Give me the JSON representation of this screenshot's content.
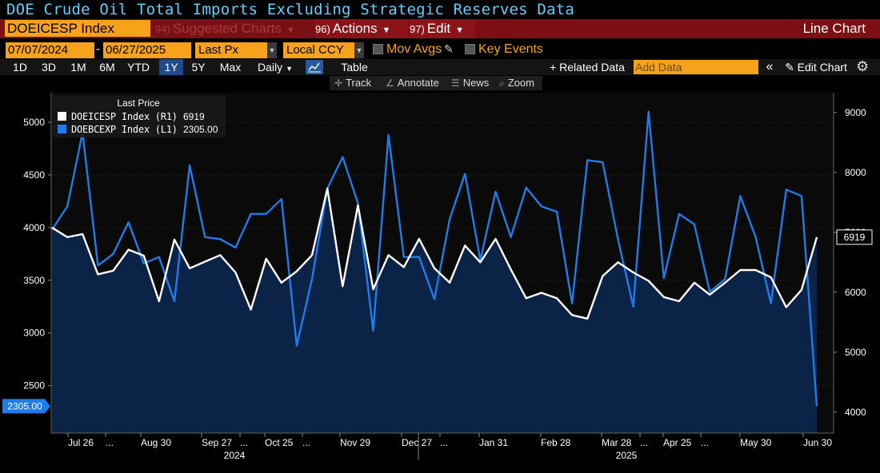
{
  "header": {
    "title": "DOE Crude Oil Total Imports Excluding Strategic Reserves Data",
    "ticker": "DOEICESP Index",
    "menu_suggested": {
      "num": "94)",
      "label": "Suggested Charts"
    },
    "menu_actions": {
      "num": "96)",
      "label": "Actions"
    },
    "menu_edit": {
      "num": "97)",
      "label": "Edit"
    },
    "chart_type": "Line Chart"
  },
  "options": {
    "start_date": "07/07/2024",
    "date_sep": "-",
    "end_date": "06/27/2025",
    "price_field": "Last Px",
    "currency": "Local CCY",
    "mov_avgs_label": "Mov Avgs",
    "key_events_label": "Key Events"
  },
  "ranges": {
    "items": [
      "1D",
      "3D",
      "1M",
      "6M",
      "YTD",
      "1Y",
      "5Y",
      "Max"
    ],
    "active": "1Y",
    "frequency": "Daily",
    "table_label": "Table",
    "related_label": "+ Related Data",
    "add_data_placeholder": "Add Data",
    "collapse_label": "«",
    "edit_chart_label": "✎ Edit Chart"
  },
  "tools": {
    "track": "Track",
    "annotate": "Annotate",
    "news": "News",
    "zoom": "Zoom"
  },
  "colors": {
    "background": "#000000",
    "plot_area": "#0a0a0a",
    "series_white": "#ffffff",
    "series_blue": "#1f7ce8",
    "area_fill": "#0a2347",
    "accent": "#f7a21b",
    "title": "#5fd0ff"
  },
  "chart_data": {
    "type": "line",
    "legend": {
      "title": "Last Price",
      "placement": "top-left",
      "entries": [
        {
          "name": "DOEICESP Index (R1)",
          "value": "6919",
          "color": "#ffffff"
        },
        {
          "name": "DOEBCEXP Index (L1)",
          "value": "2305.00",
          "color": "#1f7ce8"
        }
      ]
    },
    "x_tick_labels": [
      "Jul 26",
      "...",
      "Aug 30",
      "Sep 27",
      "...",
      "Oct 25",
      "...",
      "Nov 29",
      "Dec 27",
      "...",
      "Jan 31",
      "Feb 28",
      "Mar 28",
      "...",
      "Apr 25",
      "...",
      "May 30",
      "Jun 30"
    ],
    "year_labels": [
      "2024",
      "2025"
    ],
    "left_axis": {
      "ticks": [
        2500,
        3000,
        3500,
        4000,
        4500,
        5000
      ],
      "range": [
        2050,
        5280
      ]
    },
    "right_axis": {
      "ticks": [
        4000,
        5000,
        6000,
        7000,
        8000,
        9000
      ],
      "range": [
        3650,
        9330
      ]
    },
    "last_value_labels": {
      "right": "6919",
      "left": "2305.00"
    },
    "series": [
      {
        "name": "DOEICESP Index",
        "axis": "right",
        "values": [
          7080,
          6920,
          6970,
          6300,
          6360,
          6710,
          6610,
          5850,
          6880,
          6400,
          6510,
          6620,
          6330,
          5710,
          6560,
          6160,
          6350,
          6620,
          7730,
          6100,
          7450,
          6050,
          6620,
          6420,
          6890,
          6400,
          6160,
          6780,
          6500,
          6890,
          6380,
          5900,
          5990,
          5900,
          5620,
          5560,
          6270,
          6500,
          6330,
          6190,
          5920,
          5850,
          6160,
          5960,
          6160,
          6370,
          6370,
          6250,
          5750,
          6040,
          6919
        ]
      },
      {
        "name": "DOEBCEXP Index",
        "axis": "left",
        "values": [
          3980,
          4200,
          4900,
          3640,
          3750,
          4050,
          3660,
          3720,
          3300,
          4590,
          3910,
          3890,
          3810,
          4130,
          4130,
          4270,
          2880,
          3510,
          4370,
          4670,
          4230,
          3020,
          4880,
          3720,
          3720,
          3320,
          4080,
          4510,
          3690,
          4340,
          3910,
          4380,
          4200,
          4150,
          3280,
          4640,
          4620,
          3890,
          3250,
          5100,
          3520,
          4130,
          4030,
          3390,
          3510,
          4300,
          3910,
          3280,
          4360,
          4300,
          2305
        ]
      }
    ]
  }
}
